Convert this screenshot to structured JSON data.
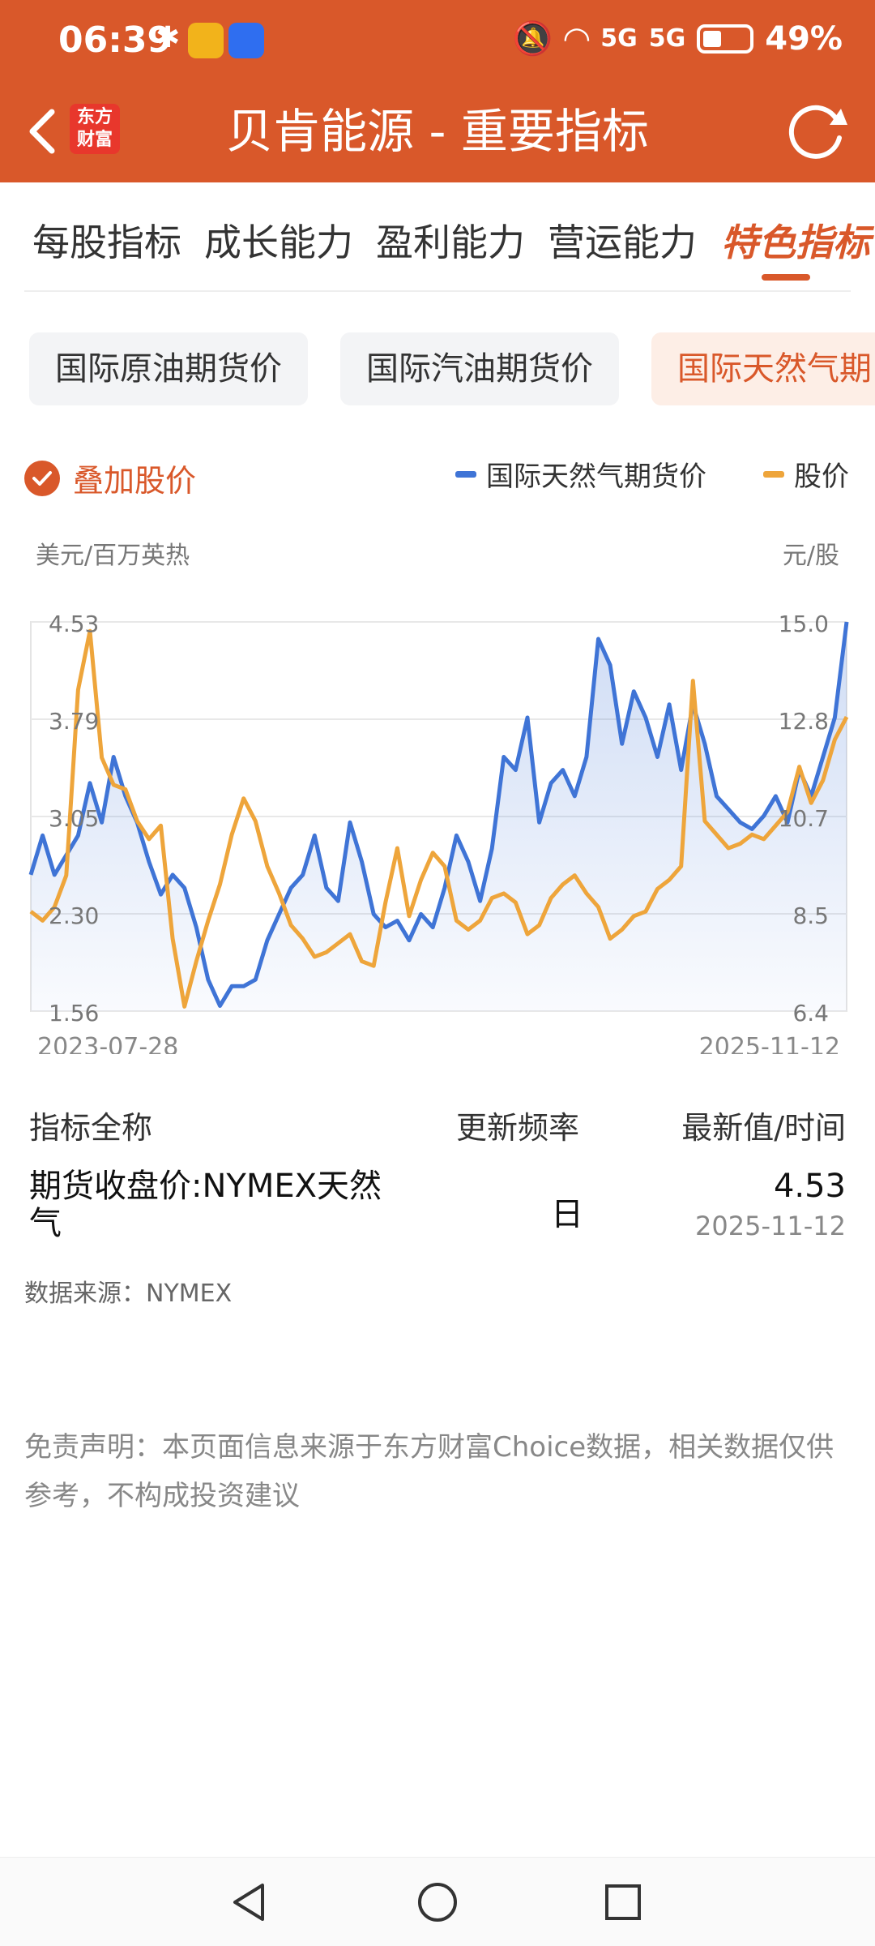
{
  "status": {
    "time": "06:39",
    "battery": "49%",
    "net1": "5G",
    "net2": "5G"
  },
  "header": {
    "title": "贝肯能源 - 重要指标",
    "logo_line1": "东方",
    "logo_line2": "财富"
  },
  "tabs": [
    "每股指标",
    "成长能力",
    "盈利能力",
    "营运能力",
    "特色指标"
  ],
  "chips": [
    "国际原油期货价",
    "国际汽油期货价",
    "国际天然气期"
  ],
  "overlay": {
    "label": "叠加股价",
    "checked": true
  },
  "legend": {
    "series1": "国际天然气期货价",
    "series2": "股价"
  },
  "colors": {
    "brand": "#d9582a",
    "series1": "#3f74d6",
    "series2": "#eea53b"
  },
  "chart_data": {
    "type": "line",
    "left_unit": "美元/百万英热",
    "right_unit": "元/股",
    "left_ticks": [
      "4.53",
      "3.79",
      "3.05",
      "2.30",
      "1.56"
    ],
    "right_ticks": [
      "15.0",
      "12.8",
      "10.7",
      "8.5",
      "6.4"
    ],
    "x_labels": [
      "2023-07-28",
      "2025-11-12"
    ],
    "left_range": [
      1.56,
      4.53
    ],
    "right_range": [
      6.4,
      15.0
    ],
    "series": [
      {
        "name": "国际天然气期货价",
        "axis": "left",
        "values": [
          2.6,
          2.9,
          2.6,
          2.75,
          2.9,
          3.3,
          3.0,
          3.5,
          3.2,
          3.0,
          2.7,
          2.45,
          2.6,
          2.5,
          2.2,
          1.8,
          1.6,
          1.75,
          1.75,
          1.8,
          2.1,
          2.3,
          2.5,
          2.6,
          2.9,
          2.5,
          2.4,
          3.0,
          2.7,
          2.3,
          2.2,
          2.25,
          2.1,
          2.3,
          2.2,
          2.5,
          2.9,
          2.7,
          2.4,
          2.8,
          3.5,
          3.4,
          3.8,
          3.0,
          3.3,
          3.4,
          3.2,
          3.5,
          4.4,
          4.2,
          3.6,
          4.0,
          3.8,
          3.5,
          3.9,
          3.4,
          3.9,
          3.6,
          3.2,
          3.1,
          3.0,
          2.95,
          3.05,
          3.2,
          3.0,
          3.4,
          3.2,
          3.5,
          3.8,
          4.53
        ]
      },
      {
        "name": "股价",
        "axis": "right",
        "values": [
          8.6,
          8.4,
          8.7,
          9.4,
          13.5,
          14.8,
          12.0,
          11.4,
          11.3,
          10.6,
          10.2,
          10.5,
          8.0,
          6.5,
          7.5,
          8.4,
          9.2,
          10.3,
          11.1,
          10.6,
          9.6,
          9.0,
          8.3,
          8.0,
          7.6,
          7.7,
          7.9,
          8.1,
          7.5,
          7.4,
          8.8,
          10.0,
          8.5,
          9.3,
          9.9,
          9.6,
          8.4,
          8.2,
          8.4,
          8.9,
          9.0,
          8.8,
          8.1,
          8.3,
          8.9,
          9.2,
          9.4,
          9.0,
          8.7,
          8.0,
          8.2,
          8.5,
          8.6,
          9.1,
          9.3,
          9.6,
          13.7,
          10.6,
          10.3,
          10.0,
          10.1,
          10.3,
          10.2,
          10.5,
          10.8,
          11.8,
          11.0,
          11.5,
          12.4,
          12.9
        ]
      }
    ],
    "grid": true
  },
  "table": {
    "col1": "指标全称",
    "col2": "更新频率",
    "col3": "最新值/时间",
    "row": {
      "name": "期货收盘价:NYMEX天然气",
      "freq": "日",
      "value": "4.53",
      "date": "2025-11-12"
    }
  },
  "source": "数据来源：NYMEX",
  "disclaimer": "免责声明：本页面信息来源于东方财富Choice数据，相关数据仅供参考，不构成投资建议"
}
